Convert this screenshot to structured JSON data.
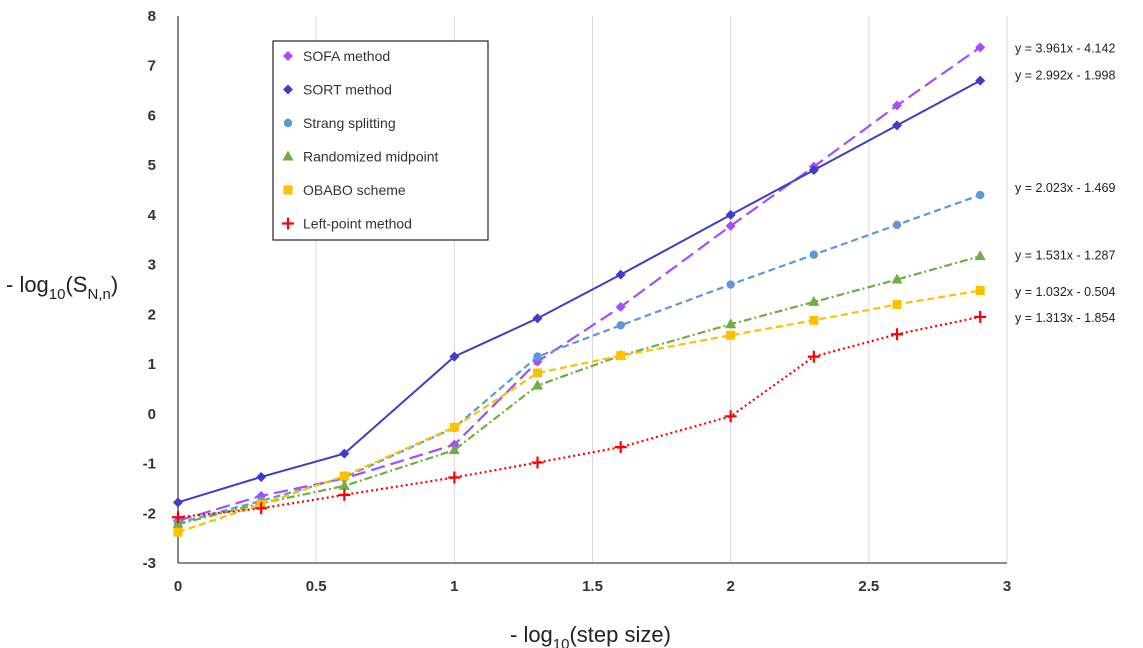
{
  "chart_data": {
    "type": "line",
    "title": "",
    "xlabel": "- log10(step size)",
    "ylabel": "- log10(SN,n)",
    "xlim": [
      0,
      3
    ],
    "ylim": [
      -3,
      8
    ],
    "x_ticks": [
      "0",
      "0.5",
      "1",
      "1.5",
      "2",
      "2.5",
      "3"
    ],
    "y_ticks": [
      "-3",
      "-2",
      "-1",
      "0",
      "1",
      "2",
      "3",
      "4",
      "5",
      "6",
      "7",
      "8"
    ],
    "grid": "vertical major gridlines",
    "legend_position": "top-left inside plot",
    "x": [
      0,
      0.301,
      0.602,
      1.0,
      1.301,
      1.602,
      2.0,
      2.301,
      2.602,
      2.903
    ],
    "series": [
      {
        "name": "SOFA method",
        "color": "#a64dff",
        "marker": "diamond",
        "line": "long-dash",
        "values": [
          -2.15,
          -1.65,
          -1.3,
          -0.62,
          1.05,
          2.15,
          3.78,
          4.97,
          6.2,
          7.37
        ]
      },
      {
        "name": "SORT method",
        "color": "#3d3dc8",
        "marker": "diamond",
        "line": "solid",
        "values": [
          -1.78,
          -1.27,
          -0.8,
          1.15,
          1.92,
          2.8,
          4.0,
          4.9,
          5.8,
          6.7
        ]
      },
      {
        "name": "Strang splitting",
        "color": "#5b9bd5",
        "marker": "circle",
        "line": "dashed",
        "values": [
          -2.2,
          -1.75,
          -1.28,
          -0.28,
          1.15,
          1.78,
          2.6,
          3.2,
          3.8,
          4.4
        ]
      },
      {
        "name": "Randomized midpoint",
        "color": "#70ad47",
        "marker": "triangle",
        "line": "dash-dot",
        "values": [
          -2.22,
          -1.8,
          -1.45,
          -0.73,
          0.57,
          1.17,
          1.8,
          2.25,
          2.7,
          3.17
        ]
      },
      {
        "name": "OBABO scheme",
        "color": "#ffc000",
        "marker": "square",
        "line": "dashed",
        "values": [
          -2.38,
          -1.82,
          -1.25,
          -0.27,
          0.82,
          1.17,
          1.58,
          1.88,
          2.2,
          2.48
        ]
      },
      {
        "name": "Left-point method",
        "color": "#ff0000",
        "marker": "plus",
        "line": "dotted",
        "values": [
          -2.08,
          -1.9,
          -1.63,
          -1.28,
          -0.98,
          -0.67,
          -0.05,
          1.15,
          1.6,
          1.95
        ]
      }
    ],
    "trendline_equations": [
      {
        "text": "y = 3.961x - 4.142",
        "anchor_y": 7.37
      },
      {
        "text": "y = 2.992x - 1.998",
        "anchor_y": 6.82
      },
      {
        "text": "y = 2.023x - 1.469",
        "anchor_y": 4.56
      },
      {
        "text": "y = 1.531x - 1.287",
        "anchor_y": 3.2
      },
      {
        "text": "y = 1.032x - 0.504",
        "anchor_y": 2.47
      },
      {
        "text": "y = 1.313x - 1.854",
        "anchor_y": 1.95
      }
    ]
  }
}
